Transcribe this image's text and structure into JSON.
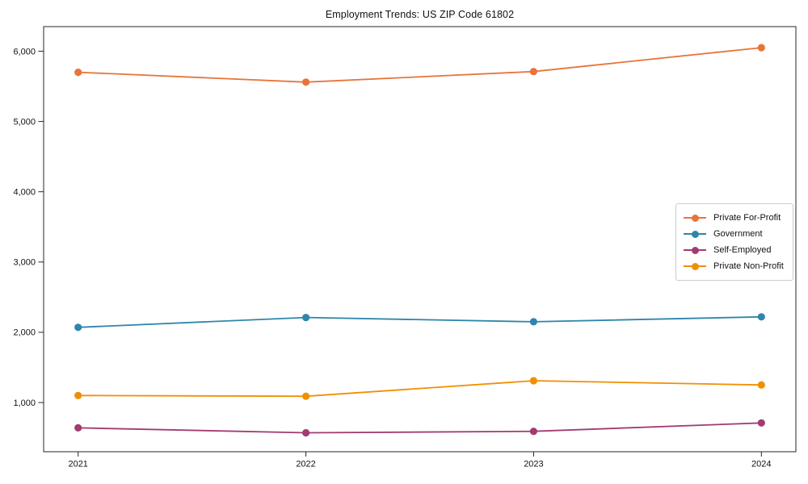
{
  "window": {
    "background": "#ffffff"
  },
  "chart_data": {
    "type": "line",
    "title": "Employment Trends: US ZIP Code 61802",
    "categories": [
      "2021",
      "2022",
      "2023",
      "2024"
    ],
    "series": [
      {
        "name": "Private For-Profit",
        "color": "#E8743B",
        "values": [
          5700,
          5560,
          5710,
          6050
        ]
      },
      {
        "name": "Government",
        "color": "#2E86AB",
        "values": [
          2070,
          2210,
          2150,
          2220
        ]
      },
      {
        "name": "Self-Employed",
        "color": "#A23B72",
        "values": [
          640,
          570,
          590,
          710
        ]
      },
      {
        "name": "Private Non-Profit",
        "color": "#F18F01",
        "values": [
          1100,
          1090,
          1310,
          1250
        ]
      }
    ],
    "xlabel": "",
    "ylabel": "",
    "y_ticks": [
      1000,
      2000,
      3000,
      4000,
      5000,
      6000
    ],
    "y_tick_labels": [
      "1,000",
      "2,000",
      "3,000",
      "4,000",
      "5,000",
      "6,000"
    ],
    "ylim": [
      300,
      6350
    ],
    "grid": false,
    "legend_position": "center-right",
    "marker": "circle",
    "axis_color": "#262626",
    "text_color": "#111111",
    "legend_border_color": "#cccccc"
  }
}
